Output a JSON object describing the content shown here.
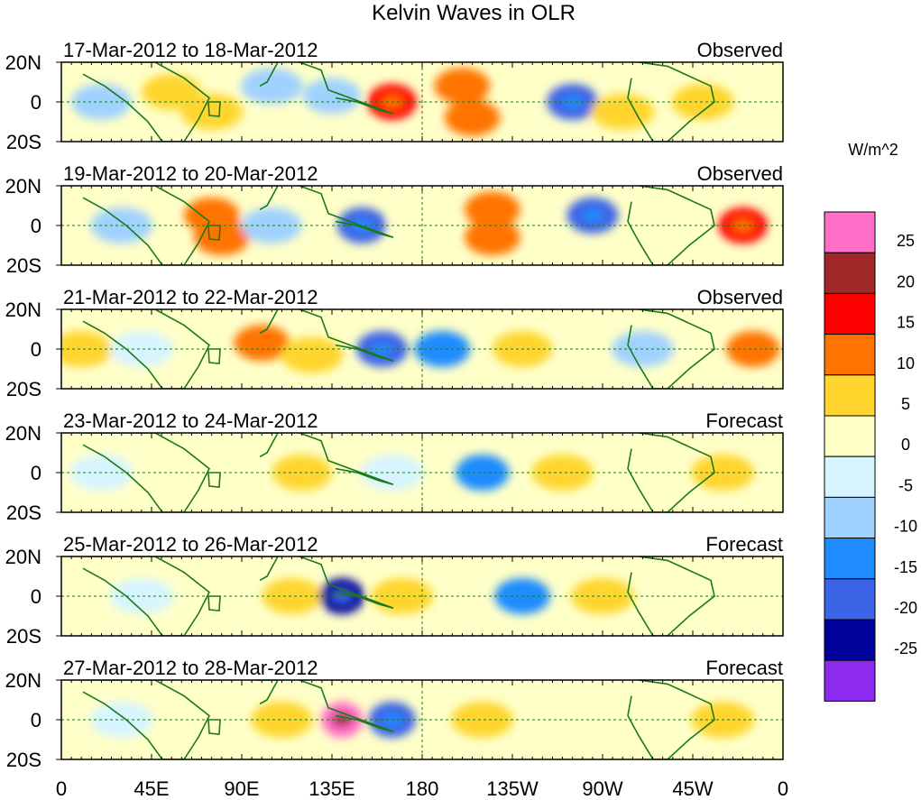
{
  "chart_data": {
    "type": "heatmap",
    "title": "Kelvin Waves in OLR",
    "units": "W/m^2",
    "y_tick_labels": [
      "20N",
      "0",
      "20S"
    ],
    "x_tick_labels": [
      "0",
      "45E",
      "90E",
      "135E",
      "180",
      "135W",
      "90W",
      "45W",
      "0"
    ],
    "x_range_deg_east": [
      0,
      360
    ],
    "y_range_deg": [
      -20,
      20
    ],
    "colorbar": {
      "labels": [
        "25",
        "20",
        "15",
        "10",
        "5",
        "0",
        "-5",
        "-10",
        "-15",
        "-20",
        "-25"
      ],
      "levels": [
        25,
        20,
        15,
        10,
        5,
        0,
        -5,
        -10,
        -15,
        -20,
        -25
      ],
      "colors": [
        "#ff6fc8",
        "#a02828",
        "#ff0000",
        "#ff7300",
        "#ffd52e",
        "#ffffc8",
        "#d7f5ff",
        "#a0d2ff",
        "#1e8cff",
        "#3c64e6",
        "#00009b",
        "#8c2aef"
      ]
    },
    "panels": [
      {
        "period": "17-Mar-2012 to 18-Mar-2012",
        "type": "Observed",
        "anomalies": [
          {
            "lon": 20,
            "lat": 0,
            "value": -8
          },
          {
            "lon": 55,
            "lat": 5,
            "value": 8
          },
          {
            "lon": 75,
            "lat": -5,
            "value": 6
          },
          {
            "lon": 105,
            "lat": 8,
            "value": -6
          },
          {
            "lon": 135,
            "lat": 3,
            "value": -10
          },
          {
            "lon": 165,
            "lat": 0,
            "value": 18
          },
          {
            "lon": 200,
            "lat": 8,
            "value": 12
          },
          {
            "lon": 205,
            "lat": -8,
            "value": 12
          },
          {
            "lon": 255,
            "lat": 0,
            "value": -16
          },
          {
            "lon": 280,
            "lat": -5,
            "value": 5
          },
          {
            "lon": 320,
            "lat": 0,
            "value": 6
          }
        ]
      },
      {
        "period": "19-Mar-2012 to 20-Mar-2012",
        "type": "Observed",
        "anomalies": [
          {
            "lon": 30,
            "lat": 0,
            "value": -6
          },
          {
            "lon": 75,
            "lat": 5,
            "value": 12
          },
          {
            "lon": 80,
            "lat": -6,
            "value": 12
          },
          {
            "lon": 105,
            "lat": 0,
            "value": -8
          },
          {
            "lon": 150,
            "lat": 0,
            "value": -18
          },
          {
            "lon": 180,
            "lat": 0,
            "value": 4
          },
          {
            "lon": 215,
            "lat": 8,
            "value": 12
          },
          {
            "lon": 215,
            "lat": -6,
            "value": 12
          },
          {
            "lon": 265,
            "lat": 5,
            "value": -16
          },
          {
            "lon": 340,
            "lat": 0,
            "value": 18
          }
        ]
      },
      {
        "period": "21-Mar-2012 to 22-Mar-2012",
        "type": "Observed",
        "anomalies": [
          {
            "lon": 10,
            "lat": 0,
            "value": 6
          },
          {
            "lon": 40,
            "lat": 0,
            "value": -5
          },
          {
            "lon": 100,
            "lat": 3,
            "value": 12
          },
          {
            "lon": 125,
            "lat": -3,
            "value": 6
          },
          {
            "lon": 160,
            "lat": 0,
            "value": -16
          },
          {
            "lon": 190,
            "lat": 0,
            "value": -12
          },
          {
            "lon": 230,
            "lat": 0,
            "value": 8
          },
          {
            "lon": 290,
            "lat": 0,
            "value": -6
          },
          {
            "lon": 345,
            "lat": 0,
            "value": 14
          }
        ]
      },
      {
        "period": "23-Mar-2012 to 24-Mar-2012",
        "type": "Forecast",
        "anomalies": [
          {
            "lon": 20,
            "lat": 0,
            "value": -5
          },
          {
            "lon": 120,
            "lat": 0,
            "value": 8
          },
          {
            "lon": 165,
            "lat": 0,
            "value": -5
          },
          {
            "lon": 210,
            "lat": 0,
            "value": -14
          },
          {
            "lon": 250,
            "lat": 0,
            "value": 6
          },
          {
            "lon": 330,
            "lat": 0,
            "value": 5
          }
        ]
      },
      {
        "period": "25-Mar-2012 to 26-Mar-2012",
        "type": "Forecast",
        "anomalies": [
          {
            "lon": 40,
            "lat": 0,
            "value": -5
          },
          {
            "lon": 115,
            "lat": 0,
            "value": 8
          },
          {
            "lon": 140,
            "lat": 0,
            "value": -22
          },
          {
            "lon": 170,
            "lat": 0,
            "value": 6
          },
          {
            "lon": 230,
            "lat": 0,
            "value": -12
          },
          {
            "lon": 270,
            "lat": 0,
            "value": 5
          }
        ]
      },
      {
        "period": "27-Mar-2012 to 28-Mar-2012",
        "type": "Forecast",
        "anomalies": [
          {
            "lon": 30,
            "lat": 0,
            "value": -5
          },
          {
            "lon": 110,
            "lat": 0,
            "value": 6
          },
          {
            "lon": 140,
            "lat": 0,
            "value": 25
          },
          {
            "lon": 165,
            "lat": 0,
            "value": -20
          },
          {
            "lon": 210,
            "lat": 0,
            "value": 6
          },
          {
            "lon": 330,
            "lat": 0,
            "value": 5
          }
        ]
      }
    ]
  }
}
